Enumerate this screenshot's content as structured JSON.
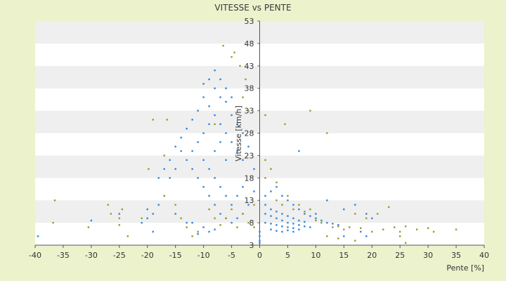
{
  "chart_data": {
    "type": "scatter",
    "title": "VITESSE vs PENTE",
    "xlabel": "Pente [%]",
    "ylabel": "Vitesse [km/h]",
    "xlim": [
      -40,
      40
    ],
    "ylim": [
      3,
      53
    ],
    "x_ticks": [
      -40,
      -35,
      -30,
      -25,
      -20,
      -15,
      -10,
      -5,
      0,
      5,
      10,
      15,
      20,
      25,
      30,
      35,
      40
    ],
    "y_ticks": [
      3,
      8,
      13,
      18,
      23,
      28,
      33,
      38,
      43,
      48,
      53
    ],
    "grid": "horizontal alternating bands",
    "legend": "none",
    "colors": {
      "background": "#ecf2cc",
      "plot_band_light": "#ffffff",
      "plot_band_dark": "#efefef",
      "axis": "#555555",
      "series_blue": "#2e86de",
      "series_olive": "#9a9a2a"
    },
    "series": [
      {
        "color": "#2e86de",
        "clusters_note": "",
        "points": [
          [
            -39.5,
            5.0
          ],
          [
            -30,
            8.5
          ],
          [
            -25,
            10
          ],
          [
            -20,
            11
          ],
          [
            -21,
            8
          ],
          [
            -19,
            6
          ],
          [
            -18,
            18
          ],
          [
            -17,
            20
          ],
          [
            -16,
            22
          ],
          [
            -15,
            25
          ],
          [
            -14,
            27
          ],
          [
            -13,
            29
          ],
          [
            -12,
            31
          ],
          [
            -11,
            33
          ],
          [
            -10,
            36
          ],
          [
            -10,
            39
          ],
          [
            -9,
            40
          ],
          [
            -8,
            38
          ],
          [
            -7,
            36
          ],
          [
            -6,
            35
          ],
          [
            -5,
            32
          ],
          [
            -4,
            30
          ],
          [
            -3,
            28
          ],
          [
            -2,
            25
          ],
          [
            -1,
            20
          ],
          [
            -1,
            15
          ],
          [
            -2,
            12
          ],
          [
            -3,
            10
          ],
          [
            -4,
            9
          ],
          [
            -5,
            8
          ],
          [
            -6,
            9
          ],
          [
            -7,
            10
          ],
          [
            -8,
            12
          ],
          [
            -9,
            14
          ],
          [
            -10,
            16
          ],
          [
            -11,
            18
          ],
          [
            -12,
            20
          ],
          [
            -13,
            22
          ],
          [
            -14,
            24
          ],
          [
            -15,
            20
          ],
          [
            -16,
            18
          ],
          [
            -17,
            14
          ],
          [
            -18,
            12
          ],
          [
            -19,
            10
          ],
          [
            -20,
            9
          ],
          [
            -12,
            8
          ],
          [
            -10,
            7
          ],
          [
            -8,
            6.5
          ],
          [
            -9,
            6
          ],
          [
            -11,
            5.5
          ],
          [
            -13,
            8
          ],
          [
            -15,
            10
          ],
          [
            -6,
            28
          ],
          [
            -7,
            26
          ],
          [
            -8,
            24
          ],
          [
            -5,
            26
          ],
          [
            -4,
            24
          ],
          [
            -3,
            22
          ],
          [
            -6,
            22
          ],
          [
            -7,
            30
          ],
          [
            -8,
            32
          ],
          [
            -9,
            34
          ],
          [
            -5,
            36
          ],
          [
            -6,
            38
          ],
          [
            -7,
            40
          ],
          [
            -8,
            42
          ],
          [
            -9,
            30
          ],
          [
            -10,
            28
          ],
          [
            -11,
            26
          ],
          [
            -12,
            24
          ],
          [
            -10,
            22
          ],
          [
            -9,
            20
          ],
          [
            -8,
            18
          ],
          [
            -7,
            16
          ],
          [
            -6,
            14
          ],
          [
            -5,
            12
          ],
          [
            -4,
            14
          ],
          [
            -3,
            16
          ],
          [
            1,
            14
          ],
          [
            2,
            15
          ],
          [
            3,
            16
          ],
          [
            4,
            14
          ],
          [
            5,
            13
          ],
          [
            6,
            12
          ],
          [
            7,
            11
          ],
          [
            8,
            10
          ],
          [
            9,
            9.5
          ],
          [
            10,
            9
          ],
          [
            11,
            8.5
          ],
          [
            12,
            8
          ],
          [
            13,
            7.8
          ],
          [
            14,
            7.5
          ],
          [
            1,
            12
          ],
          [
            2,
            11
          ],
          [
            3,
            10.5
          ],
          [
            4,
            10
          ],
          [
            5,
            9.5
          ],
          [
            6,
            9
          ],
          [
            7,
            8.5
          ],
          [
            8,
            8.2
          ],
          [
            1,
            10
          ],
          [
            2,
            9.5
          ],
          [
            3,
            9
          ],
          [
            4,
            8.5
          ],
          [
            5,
            8
          ],
          [
            6,
            7.8
          ],
          [
            7,
            7.5
          ],
          [
            8,
            7.2
          ],
          [
            9,
            7
          ],
          [
            1,
            8
          ],
          [
            2,
            7.8
          ],
          [
            3,
            7.5
          ],
          [
            4,
            7.2
          ],
          [
            5,
            7
          ],
          [
            6,
            6.8
          ],
          [
            7,
            6.5
          ],
          [
            2,
            6.5
          ],
          [
            3,
            6.2
          ],
          [
            4,
            6
          ],
          [
            5,
            6.3
          ],
          [
            6,
            6
          ],
          [
            0,
            6
          ],
          [
            0,
            5
          ],
          [
            0,
            4
          ],
          [
            0,
            3.5
          ],
          [
            10,
            10
          ],
          [
            12,
            13
          ],
          [
            15,
            11
          ],
          [
            17,
            12
          ],
          [
            19,
            10
          ],
          [
            20,
            9
          ],
          [
            18,
            6
          ],
          [
            15,
            5
          ],
          [
            19,
            5
          ],
          [
            7,
            24
          ]
        ]
      },
      {
        "color": "#9a9a2a",
        "clusters_note": "",
        "points": [
          [
            -36.5,
            13
          ],
          [
            -36.8,
            8
          ],
          [
            -30.5,
            7
          ],
          [
            -27,
            12
          ],
          [
            -26.5,
            10
          ],
          [
            -25,
            9
          ],
          [
            -24.5,
            11
          ],
          [
            -25,
            7.5
          ],
          [
            -23.5,
            5
          ],
          [
            -21,
            9
          ],
          [
            -19,
            31
          ],
          [
            -19.8,
            20
          ],
          [
            -17,
            23
          ],
          [
            -17,
            14
          ],
          [
            -16.5,
            31
          ],
          [
            -15,
            12
          ],
          [
            -14,
            9
          ],
          [
            -13,
            7
          ],
          [
            -12,
            5
          ],
          [
            -11,
            6
          ],
          [
            -9,
            11
          ],
          [
            -8,
            9
          ],
          [
            -7,
            7.5
          ],
          [
            -6,
            9
          ],
          [
            -5,
            11
          ],
          [
            -4,
            7
          ],
          [
            -3,
            10
          ],
          [
            -2,
            8
          ],
          [
            -1,
            7
          ],
          [
            -1,
            12
          ],
          [
            -6.5,
            47.5
          ],
          [
            -5,
            45
          ],
          [
            -4.5,
            46
          ],
          [
            -3.5,
            43
          ],
          [
            -2.5,
            40
          ],
          [
            -8,
            30
          ],
          [
            -2,
            33
          ],
          [
            -3,
            36
          ],
          [
            1,
            32
          ],
          [
            1,
            22
          ],
          [
            2,
            20
          ],
          [
            4.5,
            30
          ],
          [
            9,
            33
          ],
          [
            12,
            28
          ],
          [
            3,
            13
          ],
          [
            4,
            12
          ],
          [
            6,
            11
          ],
          [
            8,
            10.5
          ],
          [
            10,
            8.5
          ],
          [
            11,
            8
          ],
          [
            13,
            7
          ],
          [
            14,
            7.2
          ],
          [
            15,
            6.5
          ],
          [
            16,
            7
          ],
          [
            18,
            6.8
          ],
          [
            20,
            6
          ],
          [
            22,
            6.5
          ],
          [
            24,
            7
          ],
          [
            25,
            6
          ],
          [
            26,
            7.2
          ],
          [
            28,
            6.5
          ],
          [
            30,
            6.8
          ],
          [
            31,
            6
          ],
          [
            35,
            6.5
          ],
          [
            17,
            10
          ],
          [
            19,
            9
          ],
          [
            21,
            10
          ],
          [
            23,
            11.5
          ],
          [
            25,
            5
          ],
          [
            26,
            3.5
          ],
          [
            12,
            5
          ],
          [
            14,
            4.5
          ],
          [
            17,
            4
          ],
          [
            9,
            11
          ],
          [
            7,
            12
          ],
          [
            5,
            14
          ],
          [
            1,
            18
          ],
          [
            3,
            17
          ]
        ]
      }
    ]
  }
}
